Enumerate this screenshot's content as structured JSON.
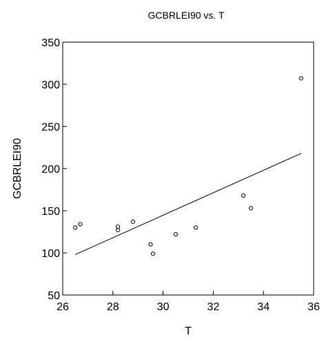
{
  "chart_data": {
    "type": "scatter",
    "title": "GCBRLEI90 vs. T",
    "xlabel": "T",
    "ylabel": "GCBRLEI90",
    "xlim": [
      26,
      36
    ],
    "ylim": [
      50,
      350
    ],
    "xticks": [
      26,
      28,
      30,
      32,
      34,
      36
    ],
    "yticks": [
      50,
      100,
      150,
      200,
      250,
      300,
      350
    ],
    "grid": false,
    "series": [
      {
        "marker": "open-circle",
        "x": [
          26.5,
          26.7,
          28.2,
          28.2,
          28.8,
          29.5,
          29.6,
          30.5,
          31.3,
          33.2,
          33.5,
          35.5
        ],
        "y": [
          130,
          134,
          131,
          127,
          137,
          110,
          99,
          122,
          130,
          168,
          153,
          307
        ]
      }
    ],
    "fit_line": {
      "x": [
        26.5,
        35.5
      ],
      "y": [
        98,
        218
      ]
    }
  }
}
